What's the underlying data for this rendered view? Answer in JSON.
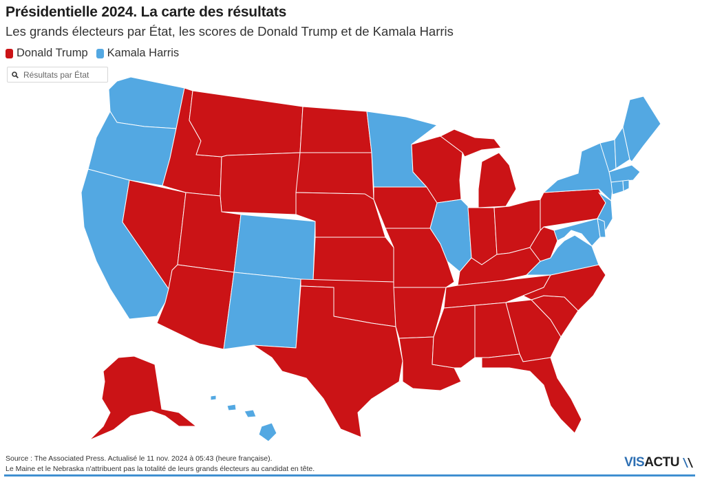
{
  "header": {
    "title": "Présidentielle 2024. La carte des résultats",
    "subtitle": "Les grands électeurs par État, les scores de Donald Trump et de Kamala Harris"
  },
  "legend": [
    {
      "label": "Donald Trump",
      "color": "#cb1316"
    },
    {
      "label": "Kamala Harris",
      "color": "#53a8e2"
    }
  ],
  "search": {
    "placeholder": "Résultats par État",
    "icon": "search-icon"
  },
  "colors": {
    "trump": "#cb1316",
    "harris": "#53a8e2",
    "border": "#ffffff"
  },
  "map": {
    "type": "choropleth",
    "winners": {
      "WA": "harris",
      "OR": "harris",
      "CA": "harris",
      "NV": "trump",
      "ID": "trump",
      "MT": "trump",
      "WY": "trump",
      "UT": "trump",
      "AZ": "trump",
      "CO": "harris",
      "NM": "harris",
      "ND": "trump",
      "SD": "trump",
      "NE": "trump",
      "KS": "trump",
      "OK": "trump",
      "TX": "trump",
      "MN": "harris",
      "IA": "trump",
      "MO": "trump",
      "AR": "trump",
      "LA": "trump",
      "WI": "trump",
      "IL": "harris",
      "MI": "trump",
      "IN": "trump",
      "OH": "trump",
      "KY": "trump",
      "TN": "trump",
      "MS": "trump",
      "AL": "trump",
      "GA": "trump",
      "FL": "trump",
      "SC": "trump",
      "NC": "trump",
      "VA": "harris",
      "WV": "trump",
      "PA": "trump",
      "NY": "harris",
      "VT": "harris",
      "NH": "harris",
      "ME": "harris",
      "MA": "harris",
      "CT": "harris",
      "RI": "harris",
      "NJ": "harris",
      "DE": "harris",
      "MD": "harris",
      "DC": "harris",
      "AK": "trump",
      "HI": "harris"
    }
  },
  "footer": {
    "source": "Source : The Associated Press. Actualisé le 11 nov. 2024 à 05:43 (heure française).",
    "note": "Le Maine et le Nebraska n'attribuent pas la totalité de leurs grands électeurs au candidat en tête."
  },
  "brand": {
    "part1": "VIS",
    "part2": "ACTU"
  }
}
